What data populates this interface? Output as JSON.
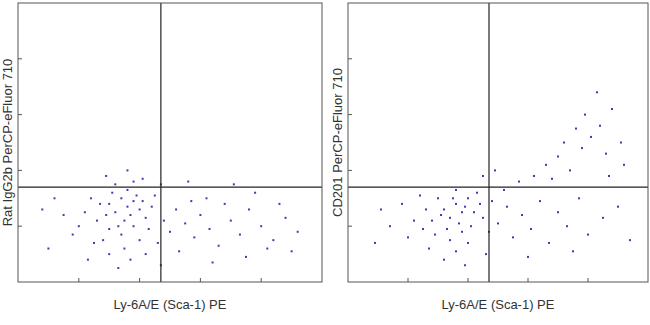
{
  "chart_data": [
    {
      "type": "scatter",
      "x_label": "Ly-6A/E (Sca-1) PE",
      "y_label": "Rat IgG2b PerCP-eFluor 710",
      "color": "#3c3cb4",
      "marker": "square",
      "tick_labels": false,
      "xlim": [
        0,
        100
      ],
      "ylim": [
        0,
        100
      ],
      "xticks": [
        20,
        40,
        60,
        80
      ],
      "yticks": [
        20,
        40,
        60,
        80
      ],
      "gate": {
        "x": 47,
        "y": 34
      },
      "x": [
        30,
        32,
        34,
        36,
        38,
        35,
        33,
        37,
        39,
        40,
        31,
        29,
        36,
        41,
        38,
        34,
        30,
        42,
        44,
        27,
        26,
        28,
        35,
        40,
        43,
        45,
        32,
        38,
        24,
        22,
        20,
        25,
        30,
        37,
        42,
        46,
        48,
        50,
        52,
        55,
        58,
        60,
        63,
        66,
        70,
        73,
        76,
        80,
        84,
        88,
        92,
        53,
        57,
        62,
        68,
        75,
        82,
        47,
        29,
        36,
        41,
        18,
        15,
        12,
        10,
        8,
        23,
        33,
        47,
        64,
        86,
        90,
        78,
        71,
        56
      ],
      "values": [
        28,
        25,
        30,
        27,
        29,
        22,
        20,
        24,
        31,
        26,
        32,
        24,
        33,
        29,
        20,
        17,
        19,
        23,
        27,
        28,
        22,
        15,
        12,
        15,
        19,
        31,
        35,
        36,
        30,
        25,
        20,
        14,
        10,
        8,
        10,
        14,
        22,
        18,
        26,
        21,
        16,
        24,
        19,
        13,
        22,
        17,
        26,
        20,
        15,
        23,
        18,
        11,
        29,
        30,
        28,
        9,
        12,
        35,
        38,
        40,
        37,
        17,
        24,
        30,
        12,
        26,
        8,
        5,
        6,
        7,
        28,
        11,
        32,
        35,
        36
      ]
    },
    {
      "type": "scatter",
      "x_label": "Ly-6A/E (Sca-1) PE",
      "y_label": "CD201 PerCP-eFluor 710",
      "color": "#3c3cb4",
      "marker": "square",
      "tick_labels": false,
      "xlim": [
        0,
        100
      ],
      "ylim": [
        0,
        100
      ],
      "xticks": [
        20,
        40,
        60,
        80
      ],
      "yticks": [
        20,
        40,
        60,
        80
      ],
      "gate": {
        "x": 47,
        "y": 34
      },
      "x": [
        32,
        34,
        36,
        38,
        35,
        37,
        39,
        33,
        31,
        40,
        42,
        36,
        38,
        30,
        28,
        41,
        44,
        34,
        29,
        43,
        45,
        26,
        25,
        27,
        36,
        40,
        47,
        24,
        22,
        20,
        32,
        39,
        46,
        50,
        53,
        55,
        58,
        61,
        64,
        67,
        70,
        73,
        77,
        80,
        85,
        90,
        94,
        52,
        57,
        62,
        66,
        70,
        74,
        78,
        81,
        84,
        79,
        86,
        88,
        83,
        76,
        72,
        68,
        91,
        87,
        92,
        18,
        14,
        11,
        9,
        45,
        49,
        60,
        75,
        48
      ],
      "values": [
        26,
        23,
        28,
        25,
        30,
        21,
        27,
        19,
        24,
        30,
        25,
        33,
        18,
        30,
        22,
        20,
        28,
        15,
        17,
        32,
        23,
        26,
        19,
        12,
        11,
        14,
        18,
        31,
        22,
        16,
        8,
        6,
        10,
        21,
        27,
        16,
        24,
        19,
        29,
        14,
        25,
        20,
        30,
        17,
        23,
        27,
        15,
        33,
        36,
        38,
        42,
        45,
        40,
        48,
        52,
        56,
        60,
        46,
        62,
        68,
        55,
        50,
        37,
        50,
        38,
        42,
        28,
        20,
        26,
        14,
        38,
        40,
        9,
        11,
        29
      ]
    }
  ]
}
